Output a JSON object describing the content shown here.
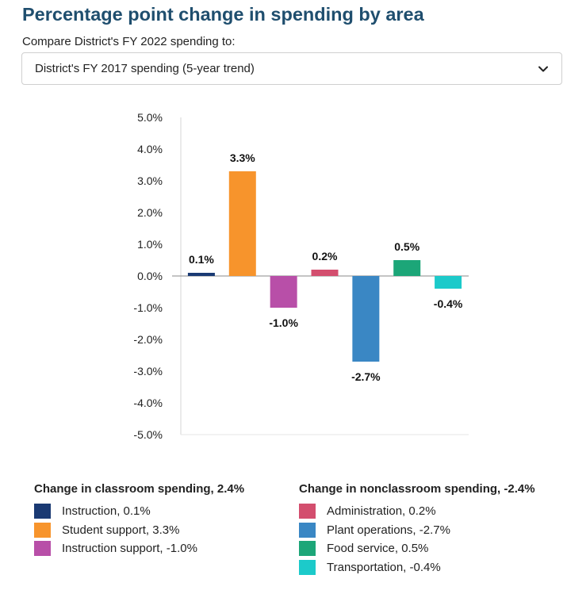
{
  "title": "Percentage point change in spending by area",
  "compare": {
    "label": "Compare District's FY 2022 spending to:",
    "selected": "District's FY 2017 spending (5-year trend)",
    "icon": "chevron-down-icon"
  },
  "chart_data": {
    "type": "bar",
    "title": "",
    "xlabel": "",
    "ylabel": "",
    "ylim": [
      -5.0,
      5.0
    ],
    "yticks": [
      "5.0%",
      "4.0%",
      "3.0%",
      "2.0%",
      "1.0%",
      "0.0%",
      "-1.0%",
      "-2.0%",
      "-3.0%",
      "-4.0%",
      "-5.0%"
    ],
    "grid": false,
    "categories": [
      "Instruction",
      "Student support",
      "Instruction support",
      "Administration",
      "Plant operations",
      "Food service",
      "Transportation"
    ],
    "values": [
      0.1,
      3.3,
      -1.0,
      0.2,
      -2.7,
      0.5,
      -0.4
    ],
    "data_labels": [
      "0.1%",
      "3.3%",
      "-1.0%",
      "0.2%",
      "-2.7%",
      "0.5%",
      "-0.4%"
    ],
    "colors": [
      "#1a3a73",
      "#f7942c",
      "#b84fa8",
      "#d34e6e",
      "#3a87c4",
      "#1ca678",
      "#1ccaca"
    ],
    "legend_placement": "bottom"
  },
  "legend": {
    "classroom": {
      "heading": "Change in classroom spending, 2.4%",
      "items": [
        {
          "label": "Instruction, 0.1%",
          "color": "#1a3a73"
        },
        {
          "label": "Student support, 3.3%",
          "color": "#f7942c"
        },
        {
          "label": "Instruction support, -1.0%",
          "color": "#b84fa8"
        }
      ]
    },
    "nonclassroom": {
      "heading": "Change in nonclassroom spending, -2.4%",
      "items": [
        {
          "label": "Administration, 0.2%",
          "color": "#d34e6e"
        },
        {
          "label": "Plant operations, -2.7%",
          "color": "#3a87c4"
        },
        {
          "label": "Food service, 0.5%",
          "color": "#1ca678"
        },
        {
          "label": "Transportation, -0.4%",
          "color": "#1ccaca"
        }
      ]
    }
  }
}
